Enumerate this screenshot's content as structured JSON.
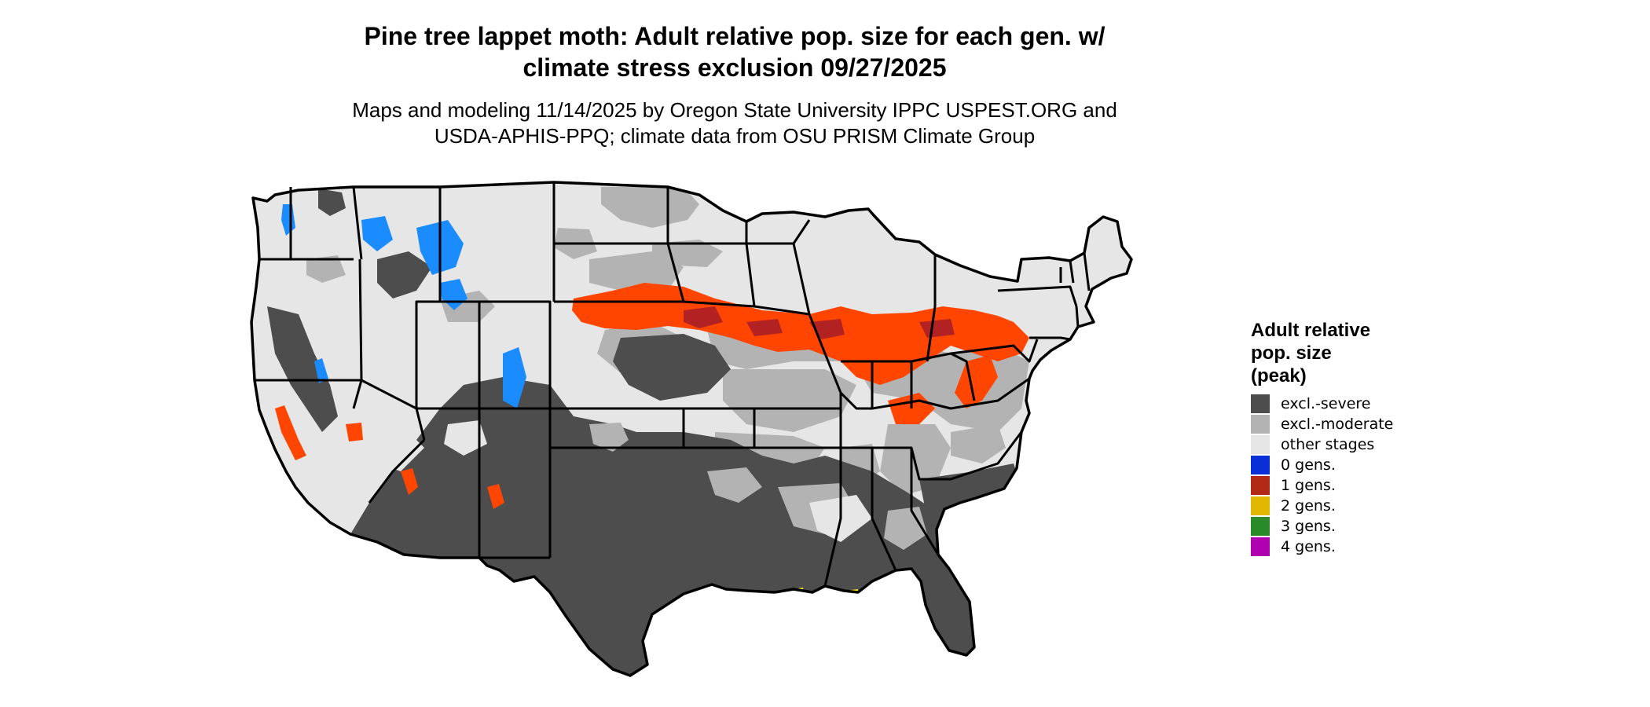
{
  "title": {
    "line1": "Pine tree lappet moth: Adult relative pop. size for each gen. w/",
    "line2": "climate stress exclusion 09/27/2025"
  },
  "subtitle": {
    "line1": "Maps and modeling 11/14/2025 by Oregon State University IPPC USPEST.ORG and",
    "line2": "USDA-APHIS-PPQ; climate data from OSU PRISM Climate Group"
  },
  "map": {
    "region": "conterminous-united-states",
    "colors": {
      "background": "#ffffff",
      "other_stages": "#e6e6e6",
      "excl_moderate": "#b3b3b3",
      "excl_severe": "#4d4d4d",
      "gen_zero_blue": "#1a8cff",
      "gen_one_red": "#ff4500",
      "gen_one_dark": "#b22222",
      "gen_two_yellow": "#f5e61a",
      "state_border": "#000000"
    }
  },
  "legend": {
    "title_line1": "Adult relative",
    "title_line2": "pop. size",
    "title_line3": "(peak)",
    "items": [
      {
        "label": "excl.-severe",
        "color": "#4d4d4d"
      },
      {
        "label": "excl.-moderate",
        "color": "#b3b3b3"
      },
      {
        "label": "other stages",
        "color": "#e6e6e6"
      },
      {
        "label": "0 gens.",
        "color": "#0a2fd6"
      },
      {
        "label": "1 gens.",
        "color": "#b22a16"
      },
      {
        "label": "2 gens.",
        "color": "#e0b800"
      },
      {
        "label": "3 gens.",
        "color": "#2a8a2a"
      },
      {
        "label": "4 gens.",
        "color": "#b000b0"
      }
    ]
  }
}
